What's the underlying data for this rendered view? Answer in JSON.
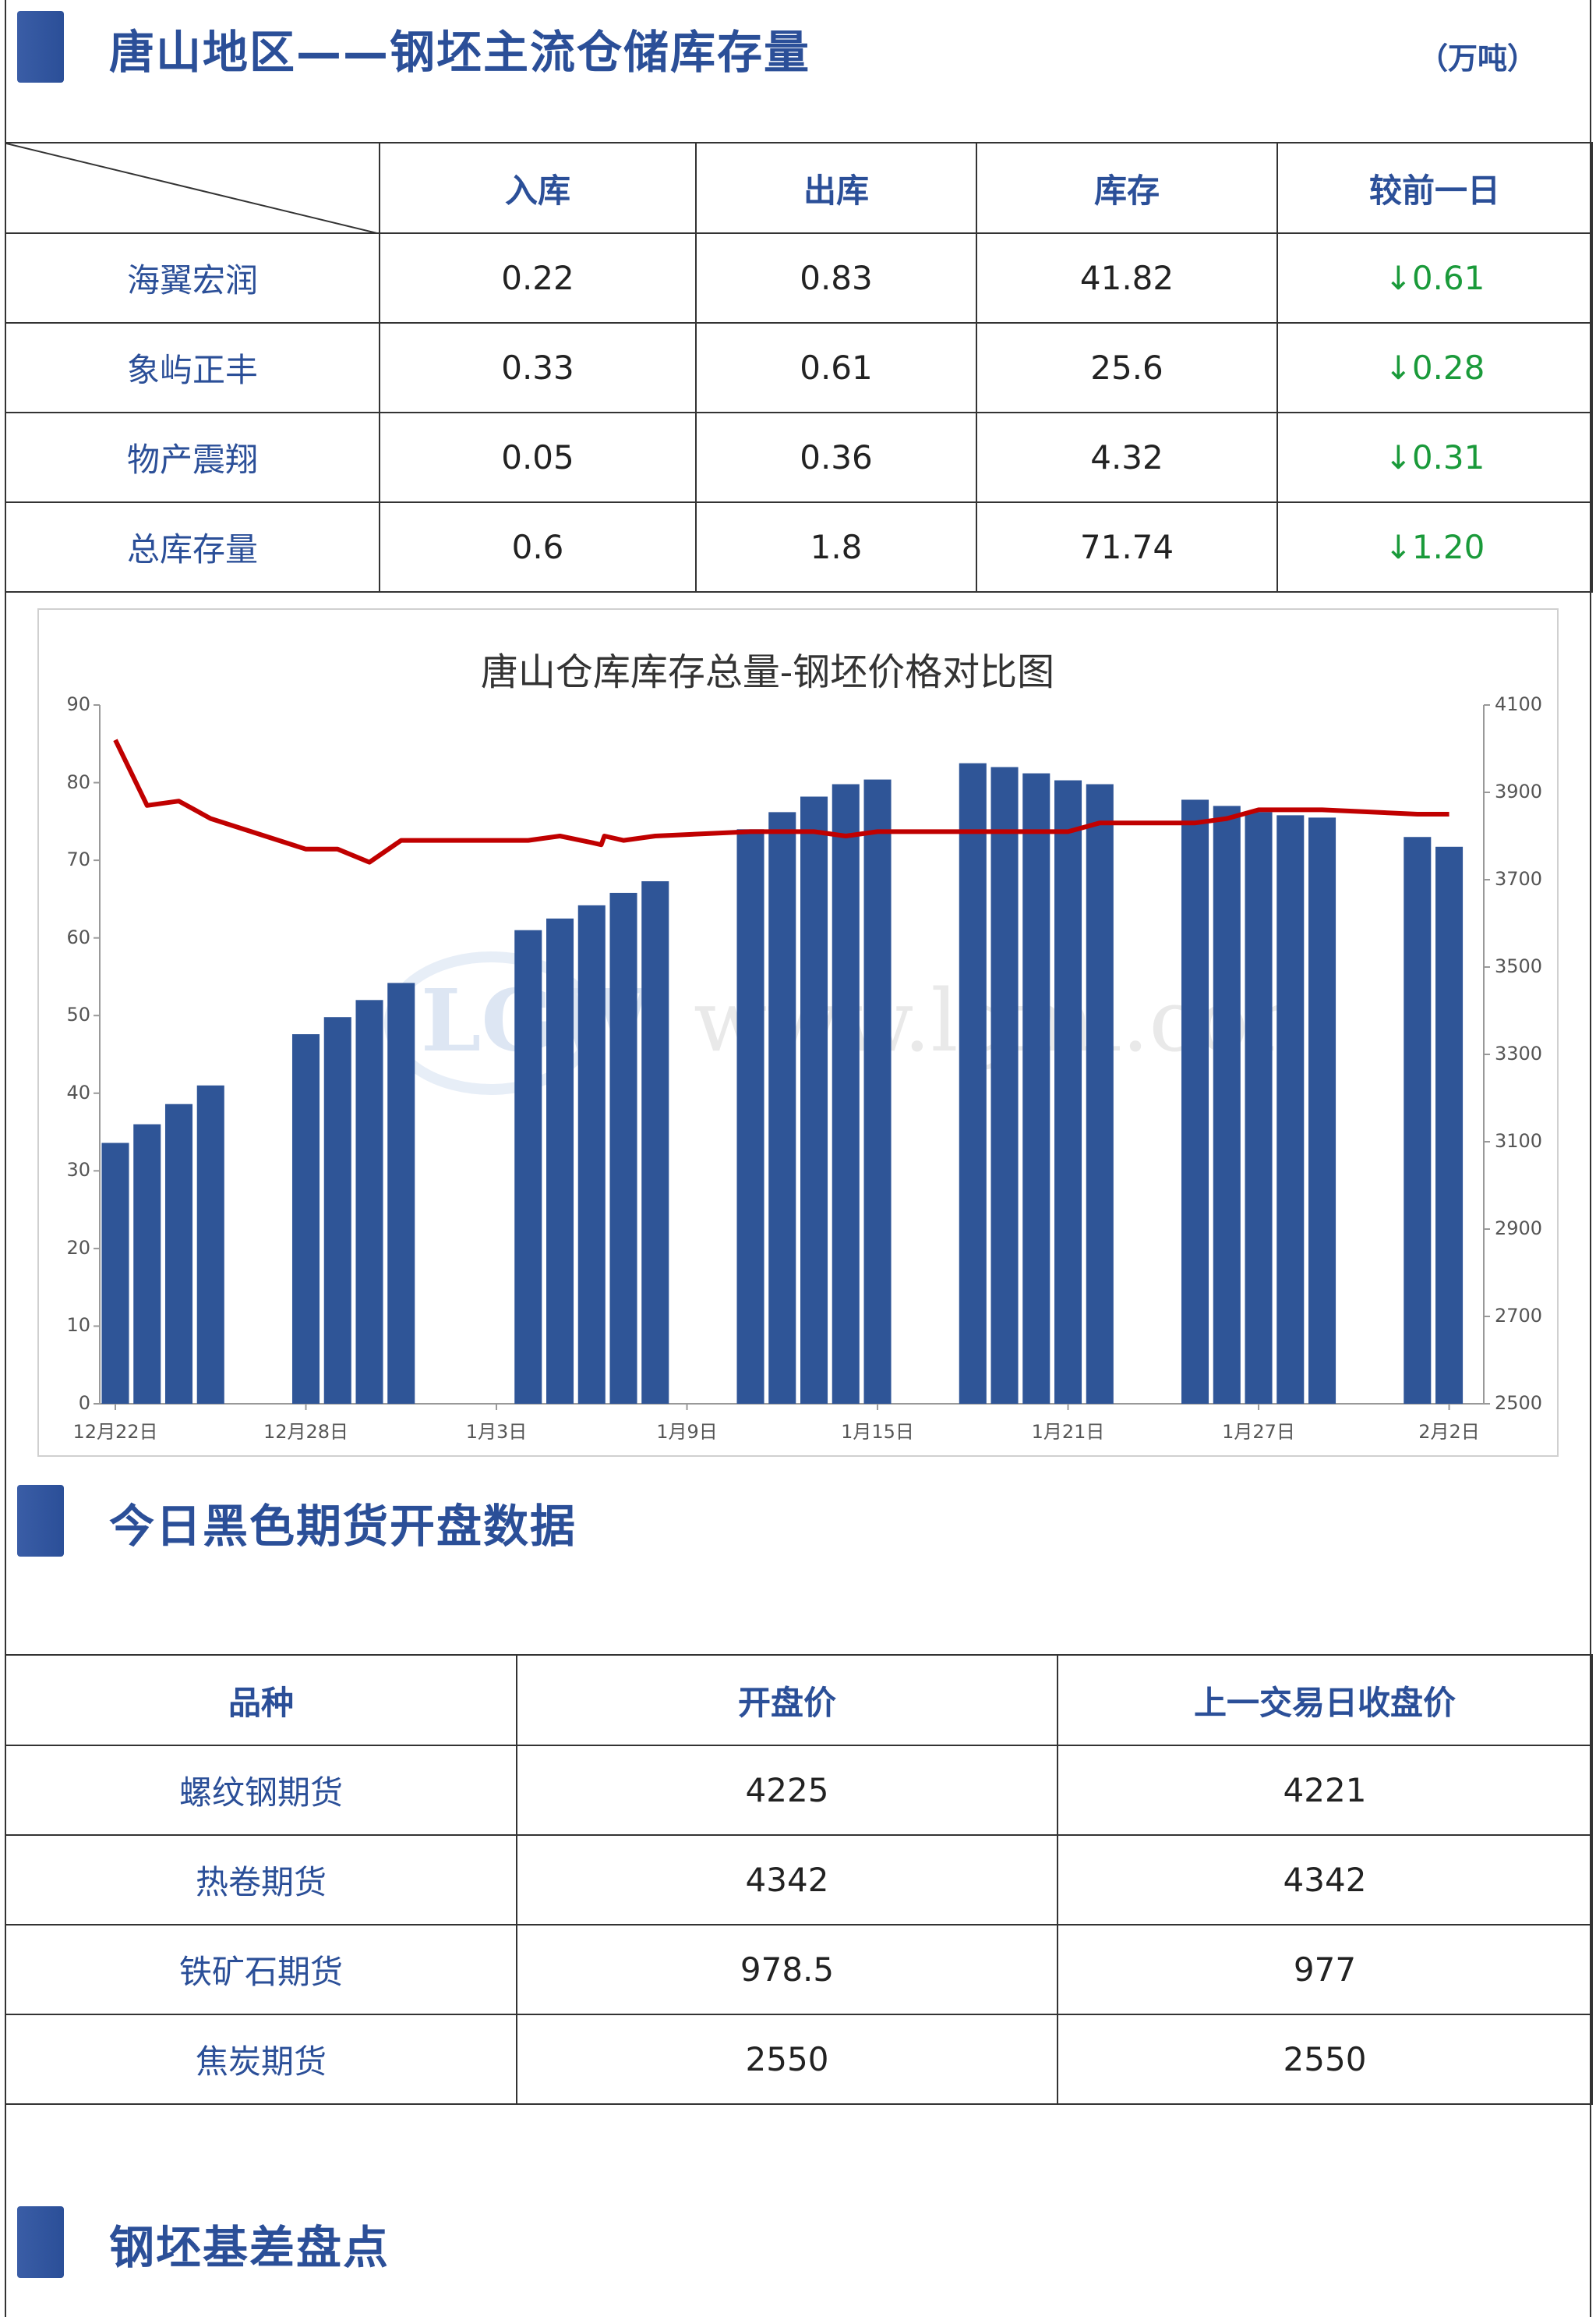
{
  "section1": {
    "title": "唐山地区——钢坯主流仓储库存量",
    "unit": "（万吨）",
    "table": {
      "headers": [
        "入库",
        "出库",
        "库存",
        "较前一日"
      ],
      "rows": [
        {
          "name": "海翼宏润",
          "in": "0.22",
          "out": "0.83",
          "stock": "41.82",
          "change": "↓0.61"
        },
        {
          "name": "象屿正丰",
          "in": "0.33",
          "out": "0.61",
          "stock": "25.6",
          "change": "↓0.28"
        },
        {
          "name": "物产震翔",
          "in": "0.05",
          "out": "0.36",
          "stock": "4.32",
          "change": "↓0.31"
        },
        {
          "name": "总库存量",
          "in": "0.6",
          "out": "1.8",
          "stock": "71.74",
          "change": "↓1.20"
        }
      ]
    }
  },
  "chart_data": {
    "type": "bar",
    "title": "唐山仓库库存总量-钢坯价格对比图",
    "xlabel": "",
    "ylabel": "",
    "ylim": [
      0,
      90
    ],
    "ylim_right": [
      2500,
      4100
    ],
    "y_ticks": [
      "0",
      "10",
      "20",
      "30",
      "40",
      "50",
      "60",
      "70",
      "80",
      "90"
    ],
    "y_ticks_right": [
      "2500",
      "2700",
      "2900",
      "3100",
      "3300",
      "3500",
      "3700",
      "3900",
      "4100"
    ],
    "x_labels": [
      "12月22日",
      "12月28日",
      "1月3日",
      "1月9日",
      "1月15日",
      "1月21日",
      "1月27日",
      "2月2日"
    ],
    "x_label_days": [
      0,
      6,
      12,
      18,
      24,
      30,
      36,
      42
    ],
    "x_range_days": [
      0,
      42.6
    ],
    "bar_color": "#2f5597",
    "line_color": "#c00000",
    "series": [
      {
        "kind": "bar",
        "values": [
          {
            "day": 0,
            "value": 33.6
          },
          {
            "day": 1,
            "value": 36.0
          },
          {
            "day": 2,
            "value": 38.6
          },
          {
            "day": 3,
            "value": 41.0
          },
          {
            "day": 6,
            "value": 47.6
          },
          {
            "day": 7,
            "value": 49.8
          },
          {
            "day": 8,
            "value": 52.0
          },
          {
            "day": 9,
            "value": 54.2
          },
          {
            "day": 13,
            "value": 61.0
          },
          {
            "day": 14,
            "value": 62.5
          },
          {
            "day": 15,
            "value": 64.2
          },
          {
            "day": 16,
            "value": 65.8
          },
          {
            "day": 17,
            "value": 67.3
          },
          {
            "day": 20,
            "value": 74.0
          },
          {
            "day": 21,
            "value": 76.2
          },
          {
            "day": 22,
            "value": 78.2
          },
          {
            "day": 23,
            "value": 79.8
          },
          {
            "day": 24,
            "value": 80.4
          },
          {
            "day": 27,
            "value": 82.5
          },
          {
            "day": 28,
            "value": 82.0
          },
          {
            "day": 29,
            "value": 81.2
          },
          {
            "day": 30,
            "value": 80.3
          },
          {
            "day": 31,
            "value": 79.8
          },
          {
            "day": 34,
            "value": 77.8
          },
          {
            "day": 35,
            "value": 77.0
          },
          {
            "day": 36,
            "value": 76.2
          },
          {
            "day": 37,
            "value": 75.8
          },
          {
            "day": 38,
            "value": 75.5
          },
          {
            "day": 41,
            "value": 73.0
          },
          {
            "day": 42,
            "value": 71.74
          }
        ]
      },
      {
        "kind": "line",
        "axis": "right",
        "values": [
          {
            "day": 0,
            "value": 4020
          },
          {
            "day": 1,
            "value": 3870
          },
          {
            "day": 2,
            "value": 3880
          },
          {
            "day": 3,
            "value": 3840
          },
          {
            "day": 6,
            "value": 3770
          },
          {
            "day": 7,
            "value": 3770
          },
          {
            "day": 8,
            "value": 3740
          },
          {
            "day": 9,
            "value": 3790
          },
          {
            "day": 13,
            "value": 3790
          },
          {
            "day": 14,
            "value": 3800
          },
          {
            "day": 15,
            "value": 3785
          },
          {
            "day": 15.3,
            "value": 3780
          },
          {
            "day": 15.4,
            "value": 3800
          },
          {
            "day": 16,
            "value": 3790
          },
          {
            "day": 17,
            "value": 3800
          },
          {
            "day": 20,
            "value": 3810
          },
          {
            "day": 21,
            "value": 3810
          },
          {
            "day": 22,
            "value": 3810
          },
          {
            "day": 23,
            "value": 3800
          },
          {
            "day": 24,
            "value": 3810
          },
          {
            "day": 27,
            "value": 3810
          },
          {
            "day": 28,
            "value": 3810
          },
          {
            "day": 29,
            "value": 3810
          },
          {
            "day": 30,
            "value": 3810
          },
          {
            "day": 31,
            "value": 3830
          },
          {
            "day": 34,
            "value": 3830
          },
          {
            "day": 35,
            "value": 3840
          },
          {
            "day": 36,
            "value": 3860
          },
          {
            "day": 37,
            "value": 3860
          },
          {
            "day": 38,
            "value": 3860
          },
          {
            "day": 41,
            "value": 3850
          },
          {
            "day": 42,
            "value": 3850
          }
        ]
      }
    ]
  },
  "section2": {
    "title": "今日黑色期货开盘数据",
    "table": {
      "headers": [
        "品种",
        "开盘价",
        "上一交易日收盘价"
      ],
      "rows": [
        {
          "name": "螺纹钢期货",
          "open": "4225",
          "prev": "4221"
        },
        {
          "name": "热卷期货",
          "open": "4342",
          "prev": "4342"
        },
        {
          "name": "铁矿石期货",
          "open": "978.5",
          "prev": "977"
        },
        {
          "name": "焦炭期货",
          "open": "2550",
          "prev": "2550"
        }
      ]
    }
  },
  "section3": {
    "title": "钢坯基差盘点"
  }
}
